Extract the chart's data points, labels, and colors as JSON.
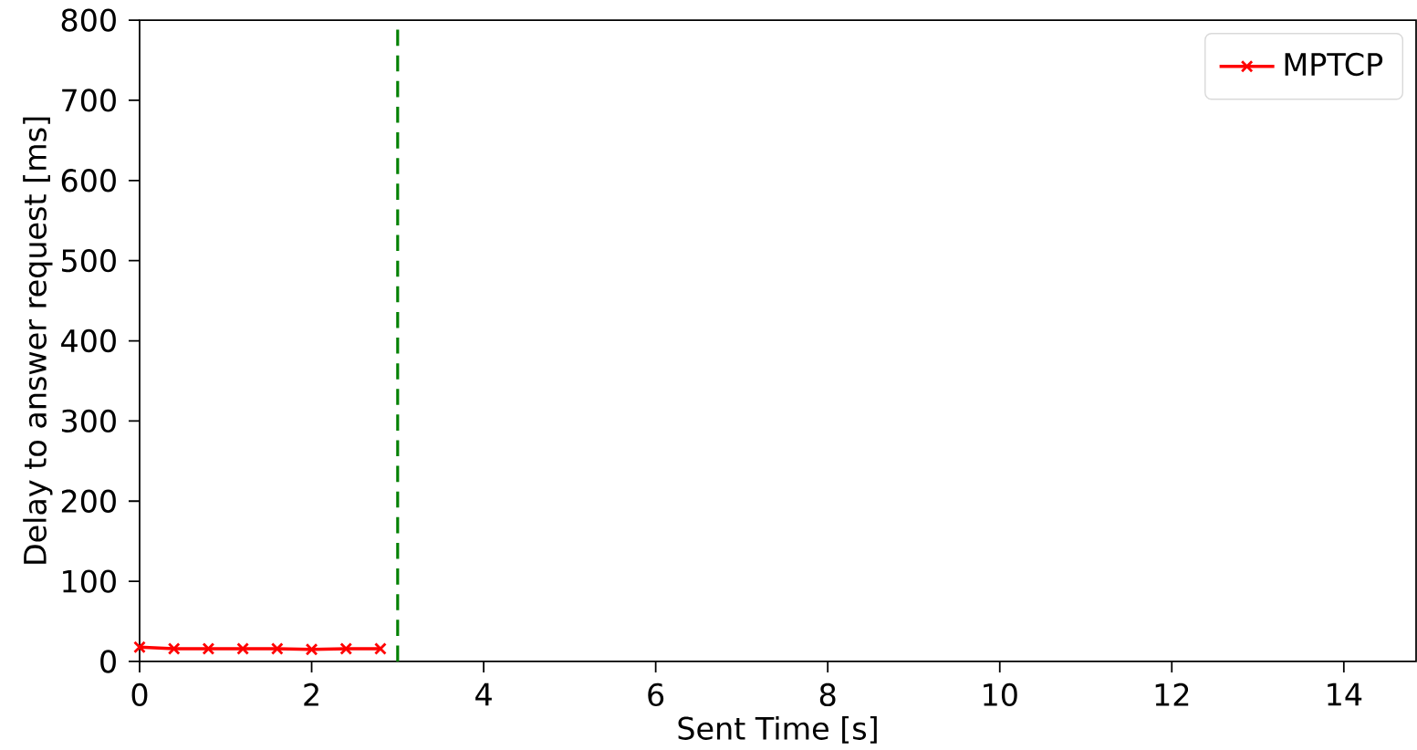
{
  "chart_data": {
    "type": "line",
    "xlabel": "Sent Time [s]",
    "ylabel": "Delay to answer request [ms]",
    "xlim": [
      0,
      14.84
    ],
    "ylim": [
      0,
      800
    ],
    "xticks": [
      0,
      2,
      4,
      6,
      8,
      10,
      12,
      14
    ],
    "yticks": [
      0,
      100,
      200,
      300,
      400,
      500,
      600,
      700,
      800
    ],
    "x": [
      0,
      0.4,
      0.8,
      1.2,
      1.6,
      2.0,
      2.4,
      2.8
    ],
    "series": [
      {
        "name": "MPTCP",
        "color": "#ff0000",
        "values": [
          18,
          16,
          16,
          16,
          16,
          15,
          16,
          16
        ]
      }
    ],
    "ref_lines": [
      {
        "axis": "x",
        "value": 3,
        "color": "#008000",
        "line_style": "dashed"
      }
    ],
    "marker": "cross",
    "line_style": "solid",
    "legend": "top right",
    "grid": false
  }
}
